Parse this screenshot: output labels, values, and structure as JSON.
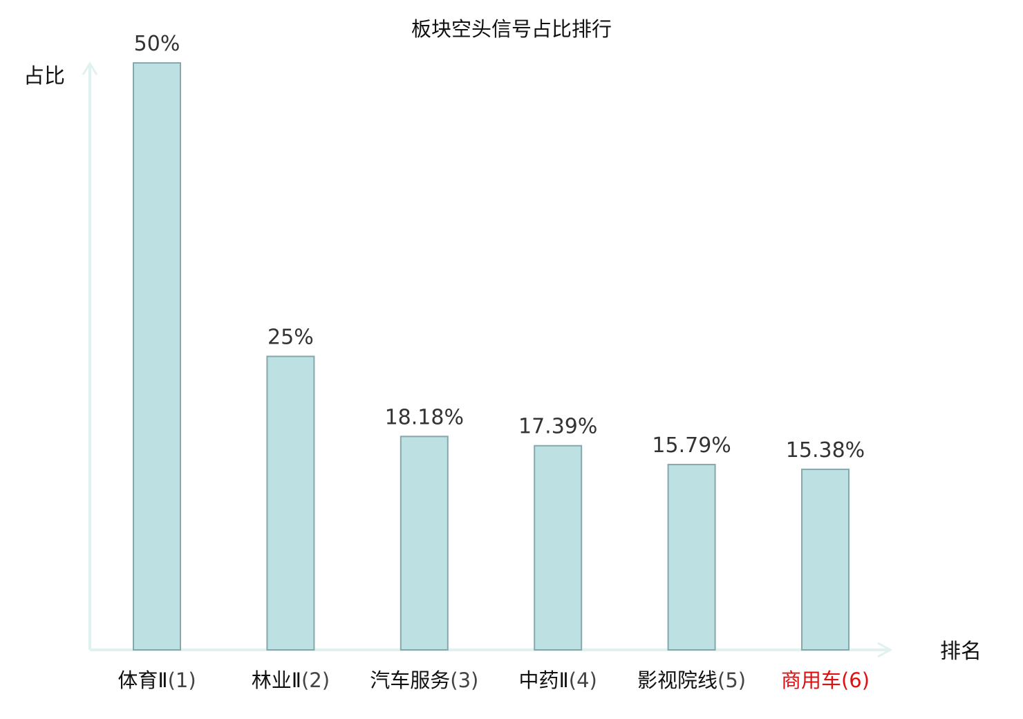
{
  "chart_data": {
    "type": "bar",
    "title": "板块空头信号占比排行",
    "ylabel": "占比",
    "xlabel": "排名",
    "ylim": [
      0,
      50
    ],
    "grid": false,
    "categories": [
      {
        "name": "体育Ⅱ",
        "rank": "(1)",
        "highlight": false
      },
      {
        "name": "林业Ⅱ",
        "rank": "(2)",
        "highlight": false
      },
      {
        "name": "汽车服务",
        "rank": "(3)",
        "highlight": false
      },
      {
        "name": "中药Ⅱ",
        "rank": "(4)",
        "highlight": false
      },
      {
        "name": "影视院线",
        "rank": "(5)",
        "highlight": false
      },
      {
        "name": "商用车",
        "rank": "(6)",
        "highlight": true
      }
    ],
    "values": [
      50,
      25,
      18.18,
      17.39,
      15.79,
      15.38
    ],
    "value_labels": [
      "50%",
      "25%",
      "18.18%",
      "17.39%",
      "15.79%",
      "15.38%"
    ],
    "colors": {
      "bar_fill": "#bde0e2",
      "bar_stroke": "#86a7ab",
      "axis": "#e0f2f0",
      "category_text": "#111111",
      "rank_text": "#444444",
      "highlight_text": "#dd1111"
    }
  }
}
